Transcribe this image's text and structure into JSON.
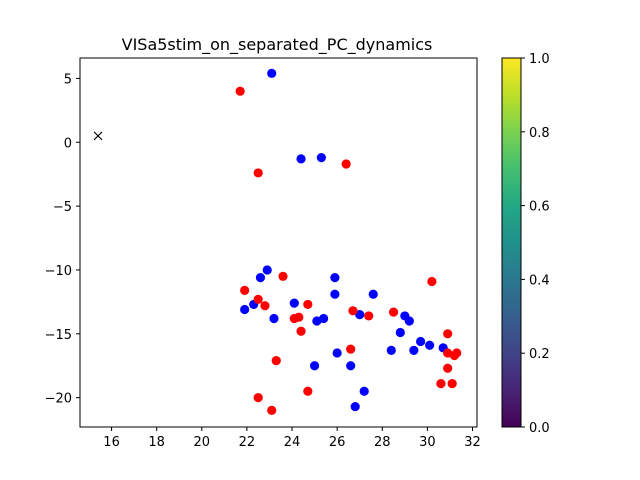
{
  "chart_data": {
    "type": "scatter",
    "title": "VISa5stim_on_separated_PC_dynamics",
    "xlabel": "",
    "ylabel": "",
    "xlim": [
      14.6,
      32.2
    ],
    "ylim": [
      -22.3,
      6.6
    ],
    "xticks": [
      16,
      18,
      20,
      22,
      24,
      26,
      28,
      30,
      32
    ],
    "yticks": [
      5,
      0,
      -5,
      -10,
      -15,
      -20
    ],
    "grid": false,
    "colors": {
      "blue": "#0000ff",
      "red": "#ff0000",
      "marker_x": "#000000"
    },
    "series": [
      {
        "color": "#0000ff",
        "x": [
          23.1,
          24.4,
          25.3,
          22.9,
          22.6,
          25.9,
          27.6,
          25.9,
          24.1,
          22.3,
          21.9,
          23.2,
          25.4,
          25.1,
          27.0,
          29.0,
          29.2,
          28.8,
          29.7,
          30.1,
          30.7,
          28.4,
          29.4,
          26.0,
          25.0,
          26.6,
          27.2,
          26.8
        ],
        "y": [
          5.4,
          -1.3,
          -1.2,
          -10.0,
          -10.6,
          -10.6,
          -11.9,
          -11.9,
          -12.6,
          -12.7,
          -13.1,
          -13.8,
          -13.8,
          -14.0,
          -13.5,
          -13.6,
          -14.0,
          -14.9,
          -15.6,
          -15.9,
          -16.1,
          -16.3,
          -16.3,
          -16.5,
          -17.5,
          -17.5,
          -19.5,
          -20.7
        ]
      },
      {
        "color": "#ff0000",
        "x": [
          21.7,
          22.5,
          26.4,
          30.2,
          23.6,
          21.9,
          22.5,
          22.8,
          24.7,
          24.1,
          24.3,
          26.7,
          27.4,
          28.5,
          24.4,
          30.9,
          23.3,
          26.6,
          30.9,
          31.3,
          31.2,
          30.9,
          30.6,
          31.1,
          24.7,
          22.5,
          23.1
        ],
        "y": [
          4.0,
          -2.4,
          -1.7,
          -10.9,
          -10.5,
          -11.6,
          -12.3,
          -12.8,
          -12.7,
          -13.8,
          -13.7,
          -13.2,
          -13.6,
          -13.3,
          -14.8,
          -15.0,
          -17.1,
          -16.2,
          -16.5,
          -16.5,
          -16.7,
          -17.7,
          -18.9,
          -18.9,
          -19.5,
          -20.0,
          -21.0
        ]
      }
    ],
    "extra_marker": {
      "type": "x",
      "x": 15.4,
      "y": 0.5
    },
    "colorbar": {
      "cmap": "viridis",
      "ticks": [
        "0.0",
        "0.2",
        "0.4",
        "0.6",
        "0.8",
        "1.0"
      ],
      "values": [
        0.0,
        0.2,
        0.4,
        0.6,
        0.8,
        1.0
      ]
    }
  }
}
